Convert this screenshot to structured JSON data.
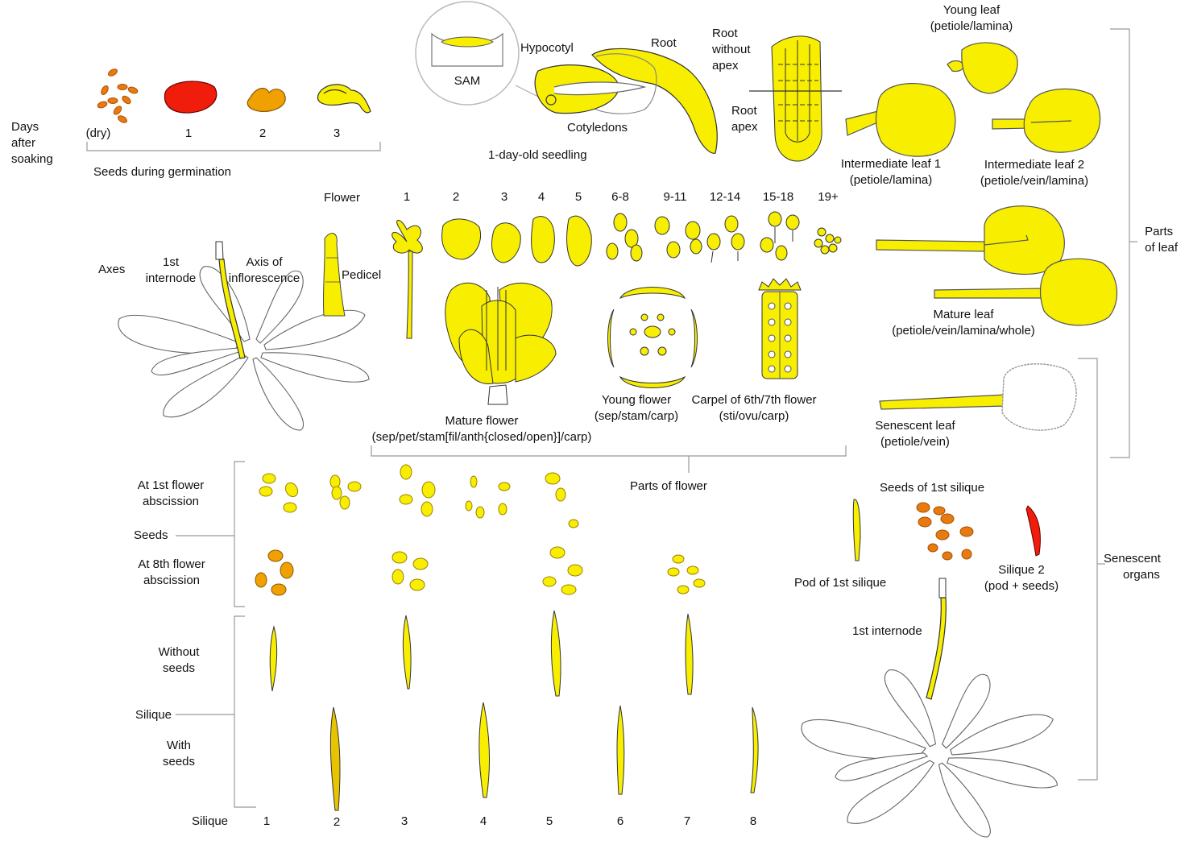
{
  "colors": {
    "yellow": "#f7ee00",
    "yellow_dark": "#e8c400",
    "orange": "#f0a000",
    "orange_dark": "#e87a10",
    "red": "#f01c0c",
    "outline": "#333333",
    "leaf_outline": "#666666",
    "bracket": "#999999",
    "white": "#ffffff"
  },
  "germination": {
    "side_label": [
      "Days",
      "after",
      "soaking"
    ],
    "days": [
      "(dry)",
      "1",
      "2",
      "3"
    ],
    "caption": "Seeds during germination"
  },
  "seedling": {
    "sam": "SAM",
    "hypocotyl": "Hypocotyl",
    "root": "Root",
    "cotyledons": "Cotyledons",
    "caption": "1-day-old seedling"
  },
  "root_tip": {
    "without_apex": [
      "Root",
      "without",
      "apex"
    ],
    "apex": [
      "Root",
      "apex"
    ]
  },
  "leaves": {
    "young": [
      "Young leaf",
      "(petiole/lamina)"
    ],
    "intermediate_1": [
      "Intermediate leaf 1",
      "(petiole/lamina)"
    ],
    "intermediate_2": [
      "Intermediate leaf 2",
      "(petiole/vein/lamina)"
    ],
    "mature": [
      "Mature leaf",
      "(petiole/vein/lamina/whole)"
    ],
    "senescent": [
      "Senescent leaf",
      "(petiole/vein)"
    ],
    "bracket_label": [
      "Parts",
      "of leaf"
    ]
  },
  "axes": {
    "label": "Axes",
    "first_internode": [
      "1st",
      "internode"
    ],
    "inflorescence": [
      "Axis of",
      "inflorescence"
    ],
    "pedicel": "Pedicel"
  },
  "flowers": {
    "label": "Flower",
    "stages": [
      "1",
      "2",
      "3",
      "4",
      "5",
      "6-8",
      "9-11",
      "12-14",
      "15-18",
      "19+"
    ],
    "mature": [
      "Mature flower",
      "(sep/pet/stam[fil/anth{closed/open}]/carp)"
    ],
    "young": [
      "Young flower",
      "(sep/stam/carp)"
    ],
    "carpel": [
      "Carpel of 6th/7th flower",
      "(sti/ovu/carp)"
    ],
    "bracket_label": "Parts of flower"
  },
  "seeds": {
    "label": "Seeds",
    "first_abscission": [
      "At 1st flower",
      "abscission"
    ],
    "eighth_abscission": [
      "At 8th flower",
      "abscission"
    ]
  },
  "siliques": {
    "label": "Silique",
    "without_seeds": [
      "Without",
      "seeds"
    ],
    "with_seeds": [
      "With",
      "seeds"
    ],
    "numbers_label": "Silique",
    "numbers": [
      "1",
      "2",
      "3",
      "4",
      "5",
      "6",
      "7",
      "8"
    ]
  },
  "senescent_organs": {
    "seeds_first": "Seeds of 1st silique",
    "pod_first": "Pod of 1st silique",
    "silique2": [
      "Silique 2",
      "(pod + seeds)"
    ],
    "internode": "1st internode",
    "bracket_label": [
      "Senescent",
      "organs"
    ]
  }
}
